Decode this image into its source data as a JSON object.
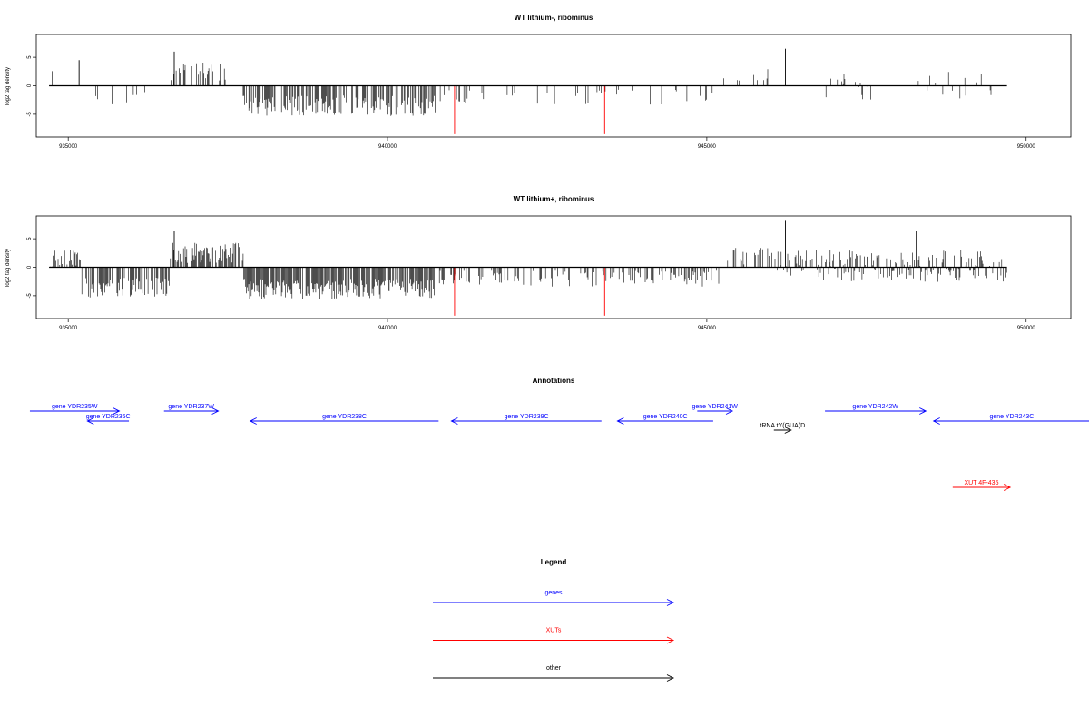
{
  "chart_data": [
    {
      "type": "bar",
      "title": "WT lithium-, ribominus",
      "ylabel": "log2 tag density",
      "xlim": [
        934500,
        950700
      ],
      "ylim": [
        -9,
        9
      ],
      "xticks": [
        935000,
        940000,
        945000,
        950000
      ],
      "xtick_labels": [
        "935000",
        "940000",
        "945000",
        "950000"
      ],
      "yticks": [
        -5,
        0,
        5
      ],
      "ytick_labels": [
        "-5",
        "0",
        "5"
      ],
      "segments": [
        {
          "from": 934700,
          "to": 935150,
          "mean": 1.5,
          "spread": 1.5,
          "density": 0.05
        },
        {
          "from": 935150,
          "to": 936300,
          "mean": -2.5,
          "spread": 1.8,
          "density": 0.15
        },
        {
          "from": 936600,
          "to": 937550,
          "mean": 2.5,
          "spread": 1.6,
          "density": 0.25
        },
        {
          "from": 937700,
          "to": 940750,
          "mean": -3.5,
          "spread": 1.8,
          "density": 0.6
        },
        {
          "from": 940800,
          "to": 945200,
          "mean": -2.0,
          "spread": 1.3,
          "density": 0.1
        },
        {
          "from": 945250,
          "to": 946000,
          "mean": 1.8,
          "spread": 1.2,
          "density": 0.08
        },
        {
          "from": 946700,
          "to": 949700,
          "mean": 0.0,
          "spread": 2.5,
          "density": 0.12
        }
      ],
      "spikes": [
        {
          "x": 936660,
          "y": 6.0
        },
        {
          "x": 946230,
          "y": 6.5
        },
        {
          "x": 935170,
          "y": 4.5
        }
      ],
      "red_marks": [
        {
          "x": 941050,
          "y": -8.5
        },
        {
          "x": 943400,
          "y": -8.5
        }
      ],
      "seed": 7
    },
    {
      "type": "bar",
      "title": "WT lithium+, ribominus",
      "ylabel": "log2 tag density",
      "xlim": [
        934500,
        950700
      ],
      "ylim": [
        -9,
        9
      ],
      "xticks": [
        935000,
        940000,
        945000,
        950000
      ],
      "xtick_labels": [
        "935000",
        "940000",
        "945000",
        "950000"
      ],
      "yticks": [
        -5,
        0,
        5
      ],
      "ytick_labels": [
        "-5",
        "0",
        "5"
      ],
      "segments": [
        {
          "from": 934700,
          "to": 935200,
          "mean": 1.5,
          "spread": 1.5,
          "density": 0.6
        },
        {
          "from": 935200,
          "to": 936600,
          "mean": -3.5,
          "spread": 1.8,
          "density": 0.6
        },
        {
          "from": 936600,
          "to": 937750,
          "mean": 2.5,
          "spread": 1.8,
          "density": 0.7
        },
        {
          "from": 937750,
          "to": 940750,
          "mean": -3.8,
          "spread": 1.8,
          "density": 0.8
        },
        {
          "from": 940800,
          "to": 945300,
          "mean": -2.0,
          "spread": 1.5,
          "density": 0.35
        },
        {
          "from": 945300,
          "to": 946100,
          "mean": 2.0,
          "spread": 1.5,
          "density": 0.3
        },
        {
          "from": 946100,
          "to": 949700,
          "mean": 0.2,
          "spread": 2.8,
          "density": 0.6
        }
      ],
      "spikes": [
        {
          "x": 936660,
          "y": 6.3
        },
        {
          "x": 946230,
          "y": 8.3
        },
        {
          "x": 948280,
          "y": 6.3
        }
      ],
      "red_marks": [
        {
          "x": 941050,
          "y": -8.5
        },
        {
          "x": 943400,
          "y": -8.5
        }
      ],
      "seed": 19
    }
  ],
  "annotations": {
    "title": "Annotations",
    "xlim": [
      934500,
      950700
    ],
    "features": [
      {
        "label": "gene YDR235W",
        "start": 934400,
        "end": 935800,
        "dir": "right",
        "row": 1,
        "color": "#0000ff"
      },
      {
        "label": "gene YDR236C",
        "start": 935300,
        "end": 935950,
        "dir": "left",
        "row": 2,
        "color": "#0000ff"
      },
      {
        "label": "gene YDR237W",
        "start": 936500,
        "end": 937350,
        "dir": "right",
        "row": 1,
        "color": "#0000ff"
      },
      {
        "label": "gene YDR238C",
        "start": 937850,
        "end": 940800,
        "dir": "left",
        "row": 2,
        "color": "#0000ff"
      },
      {
        "label": "gene YDR239C",
        "start": 941000,
        "end": 943350,
        "dir": "left",
        "row": 2,
        "color": "#0000ff"
      },
      {
        "label": "gene YDR240C",
        "start": 943600,
        "end": 945100,
        "dir": "left",
        "row": 2,
        "color": "#0000ff"
      },
      {
        "label": "gene YDR241W",
        "start": 944850,
        "end": 945400,
        "dir": "right",
        "row": 1,
        "color": "#0000ff"
      },
      {
        "label": "tRNA tY(GUA)D",
        "start": 946050,
        "end": 946320,
        "dir": "right",
        "row": 3,
        "color": "#000000"
      },
      {
        "label": "gene YDR242W",
        "start": 946850,
        "end": 948430,
        "dir": "right",
        "row": 1,
        "color": "#0000ff"
      },
      {
        "label": "gene YDR243C",
        "start": 948550,
        "end": 951000,
        "dir": "left",
        "row": 2,
        "color": "#0000ff"
      },
      {
        "label": "XUT 4F-435",
        "start": 948850,
        "end": 949750,
        "dir": "right",
        "row": 4,
        "color": "#ff0000"
      }
    ]
  },
  "legend": {
    "title": "Legend",
    "items": [
      {
        "label": "genes",
        "color": "#0000ff"
      },
      {
        "label": "XUTs",
        "color": "#ff0000"
      },
      {
        "label": "other",
        "color": "#000000"
      }
    ]
  }
}
